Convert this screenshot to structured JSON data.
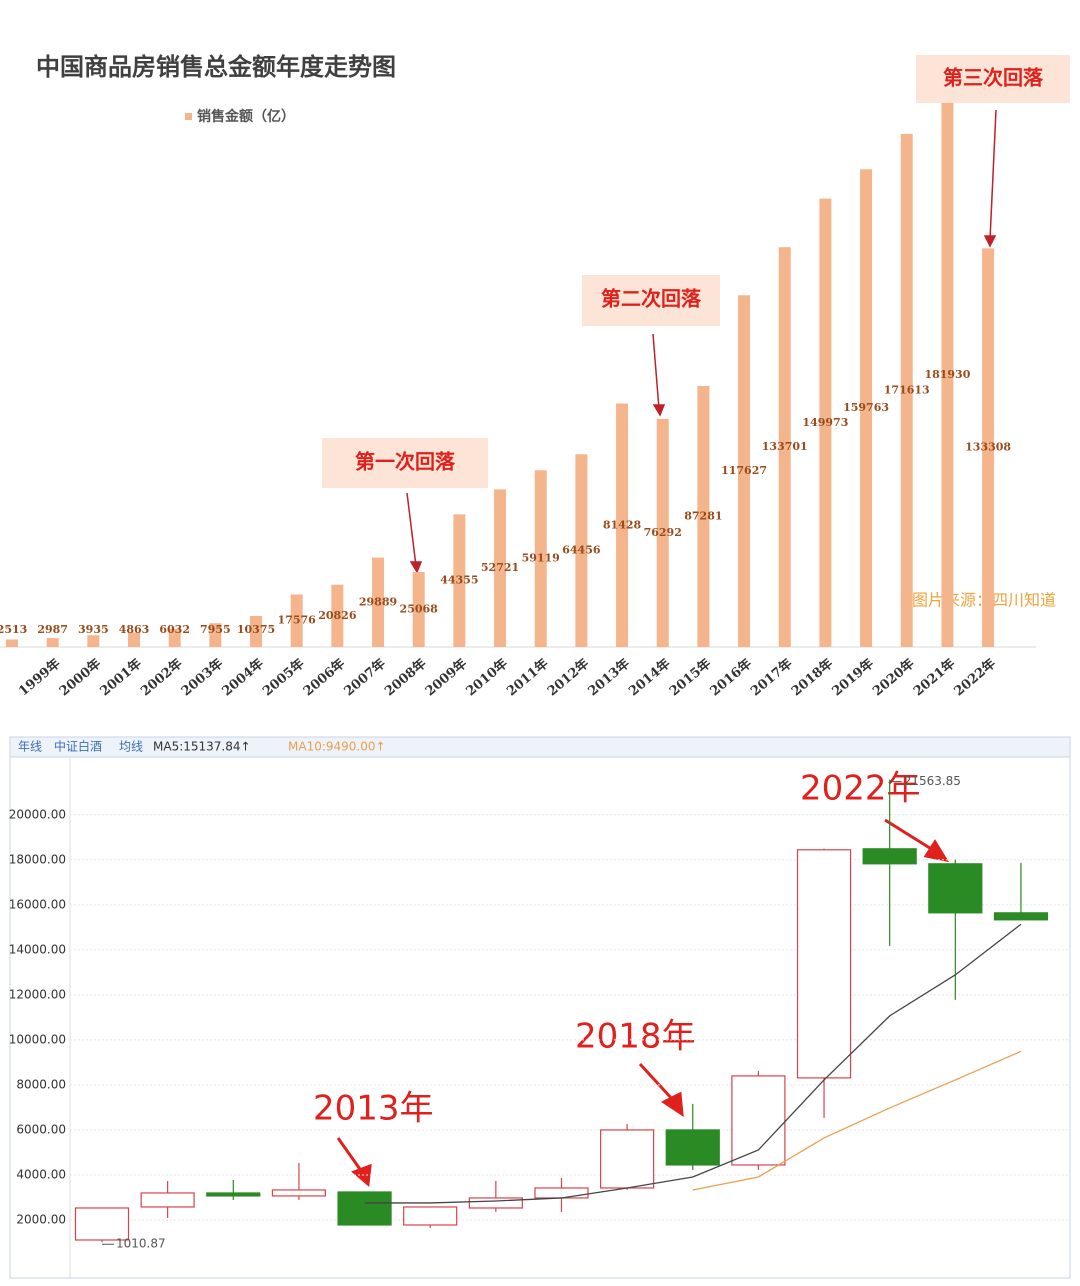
{
  "chart_data": [
    {
      "type": "bar",
      "title": "中国商品房销售总金额年度走势图",
      "legend": "销售金额（亿）",
      "categories": [
        null,
        "1999年",
        "2000年",
        "2001年",
        "2002年",
        "2003年",
        "2004年",
        "2005年",
        "2006年",
        "2007年",
        "2008年",
        "2009年",
        "2010年",
        "2011年",
        "2012年",
        "2013年",
        "2014年",
        "2015年",
        "2016年",
        "2017年",
        "2018年",
        "2019年",
        "2020年",
        "2021年",
        "2022年"
      ],
      "values": [
        2513,
        2987,
        3935,
        4863,
        6032,
        7955,
        10375,
        17576,
        20826,
        29889,
        25068,
        44355,
        52721,
        59119,
        64456,
        81428,
        76292,
        87281,
        117627,
        133701,
        149973,
        159763,
        171613,
        181930,
        133308
      ],
      "color": "#f4b58c",
      "annotations": [
        "第一次回落",
        "第二次回落",
        "第三次回落"
      ],
      "source": "图片来源：四川知道"
    },
    {
      "type": "candlestick",
      "header": [
        "年线",
        "中证白酒",
        "均线",
        "MA5:15137.84↑",
        "MA10:9490.00↑"
      ],
      "open": [
        1111,
        2578,
        3200,
        3067,
        3244,
        1778,
        2533,
        2978,
        3422,
        6000,
        4444,
        8311,
        18489,
        17822,
        15644
      ],
      "close": [
        2533,
        3200,
        3067,
        3333,
        1778,
        2578,
        2978,
        3422,
        6000,
        4444,
        8400,
        18444,
        17822,
        15644,
        15333
      ],
      "high": [
        2533,
        3733,
        3778,
        4533,
        3244,
        2578,
        3733,
        3867,
        6267,
        7156,
        8622,
        18489,
        21563.85,
        18000,
        17867
      ],
      "low": [
        1010.87,
        2089,
        2889,
        2889,
        1778,
        1644,
        2356,
        2356,
        3333,
        4222,
        4222,
        6533,
        14178,
        11778,
        15333
      ],
      "series": [
        {
          "name": "MA5",
          "color": "#444444",
          "values": [
            null,
            null,
            null,
            null,
            2756,
            2756,
            2844,
            2978,
            3422,
            3911,
            5111,
            8222,
            11067,
            12889,
            15137.84
          ]
        },
        {
          "name": "MA10",
          "color": "#e8a050",
          "values": [
            null,
            null,
            null,
            null,
            null,
            null,
            null,
            null,
            null,
            3333,
            3911,
            5644,
            6978,
            8222,
            9490.0
          ]
        }
      ],
      "up_color": "#d9434a",
      "down_color": "#2a8a24",
      "ylim": [
        0,
        22300
      ],
      "yticks": [
        {
          "value": 2000,
          "label": "2000.00"
        },
        {
          "value": 4000,
          "label": "4000.00"
        },
        {
          "value": 6000,
          "label": "6000.00"
        },
        {
          "value": 8000,
          "label": "8000.00"
        },
        {
          "value": 10000,
          "label": "10000.00"
        },
        {
          "value": 12000,
          "label": "12000.00"
        },
        {
          "value": 14000,
          "label": "14000.00"
        },
        {
          "value": 16000,
          "label": "16000.00"
        },
        {
          "value": 18000,
          "label": "18000.00"
        },
        {
          "value": 20000,
          "label": "20000.00"
        }
      ],
      "grid": true,
      "annotations": [
        "2013年",
        "2018年",
        "2022年"
      ]
    }
  ]
}
